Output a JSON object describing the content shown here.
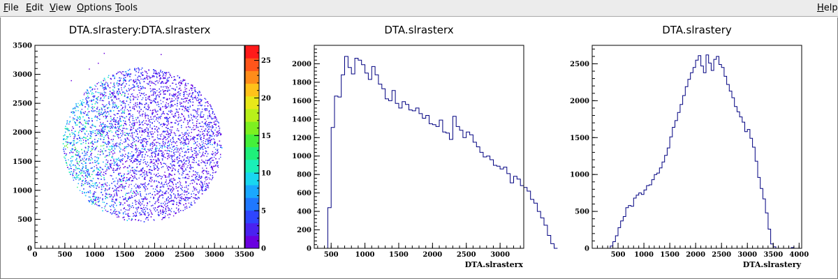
{
  "menu": {
    "items": [
      {
        "first": "F",
        "rest": "ile"
      },
      {
        "first": "E",
        "rest": "dit"
      },
      {
        "first": "V",
        "rest": "iew"
      },
      {
        "first": "O",
        "rest": "ptions"
      },
      {
        "first": "T",
        "rest": "ools"
      }
    ],
    "help": {
      "first": "H",
      "rest": "elp"
    }
  },
  "chart_data": [
    {
      "type": "heatmap",
      "title": "DTA.slrastery:DTA.slrasterx",
      "xlabel": "",
      "ylabel": "",
      "xlim": [
        0,
        3500
      ],
      "ylim": [
        0,
        3500
      ],
      "xticks": [
        "0",
        "500",
        "1000",
        "1500",
        "2000",
        "2500",
        "3000",
        "3500"
      ],
      "yticks": [
        "0",
        "500",
        "1000",
        "1500",
        "2000",
        "2500",
        "3000",
        "3500"
      ],
      "zlim": [
        0,
        27
      ],
      "zticks": [
        "0",
        "5",
        "10",
        "15",
        "20",
        "25"
      ],
      "shape": {
        "center_x": 1790,
        "center_y": 1790,
        "radius": 1330,
        "dense_side": "left"
      },
      "palette": [
        "#6a00e0",
        "#4a22f0",
        "#2e45ff",
        "#1f78ff",
        "#1aa8ff",
        "#19d7f0",
        "#19f0b8",
        "#1ff07a",
        "#45f03a",
        "#7df020",
        "#b8f01a",
        "#e8e81a",
        "#ffc21a",
        "#ff8c1a",
        "#ff551a",
        "#ff1a1a"
      ]
    },
    {
      "type": "line",
      "title": "DTA.slrasterx",
      "xlabel": "DTA.slrasterx",
      "ylabel": "",
      "xlim": [
        250,
        3350
      ],
      "ylim": [
        0,
        2200
      ],
      "xticks": [
        "500",
        "1000",
        "1500",
        "2000",
        "2500",
        "3000"
      ],
      "yticks": [
        "0",
        "200",
        "400",
        "600",
        "800",
        "1000",
        "1200",
        "1400",
        "1600",
        "1800",
        "2000"
      ],
      "bin_width": 50,
      "x_start": 450,
      "values": [
        440,
        1310,
        1650,
        1640,
        1880,
        2080,
        1960,
        1890,
        2060,
        2040,
        1990,
        1900,
        1830,
        1970,
        1880,
        1780,
        1730,
        1620,
        1600,
        1710,
        1570,
        1520,
        1590,
        1560,
        1500,
        1490,
        1520,
        1460,
        1410,
        1440,
        1350,
        1340,
        1320,
        1390,
        1260,
        1250,
        1180,
        1430,
        1320,
        1280,
        1200,
        1260,
        1230,
        1150,
        1100,
        1040,
        990,
        1000,
        960,
        900,
        890,
        860,
        880,
        810,
        710,
        780,
        750,
        680,
        660,
        620,
        530,
        490,
        400,
        330,
        250,
        140,
        50,
        0
      ]
    },
    {
      "type": "line",
      "title": "DTA.slrastery",
      "xlabel": "DTA.slrastery",
      "ylabel": "",
      "xlim": [
        0,
        4050
      ],
      "ylim": [
        0,
        2750
      ],
      "xticks": [
        "500",
        "1000",
        "1500",
        "2000",
        "2500",
        "3000",
        "3500",
        "4000"
      ],
      "yticks": [
        "0",
        "500",
        "1000",
        "1500",
        "2000",
        "2500"
      ],
      "bin_width": 50,
      "x_start": 350,
      "values": [
        30,
        90,
        170,
        280,
        370,
        430,
        550,
        580,
        570,
        680,
        720,
        750,
        730,
        790,
        850,
        860,
        930,
        1000,
        1020,
        1090,
        1170,
        1260,
        1360,
        1510,
        1640,
        1730,
        1840,
        1950,
        2070,
        2190,
        2290,
        2380,
        2450,
        2550,
        2610,
        2470,
        2380,
        2620,
        2510,
        2410,
        2560,
        2600,
        2490,
        2450,
        2330,
        2220,
        2130,
        2040,
        1920,
        1850,
        1780,
        1710,
        1580,
        1610,
        1490,
        1370,
        1180,
        960,
        810,
        670,
        480,
        260,
        60,
        20,
        0,
        0,
        0,
        0,
        0,
        0,
        10,
        0
      ]
    }
  ]
}
